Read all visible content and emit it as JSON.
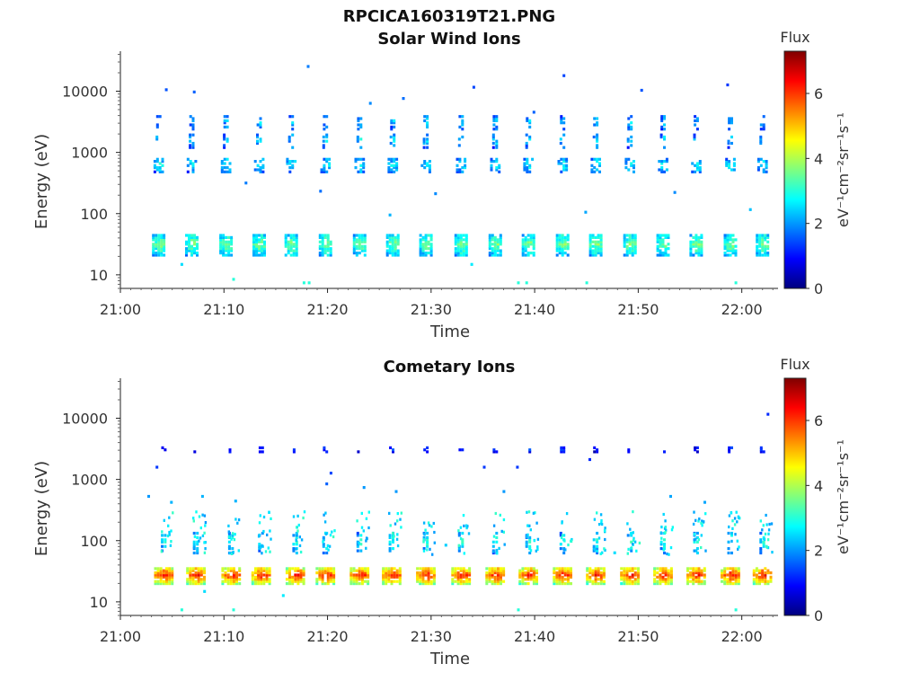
{
  "figure": {
    "title": "RPCICA160319T21.PNG"
  },
  "colorbar": {
    "label": "Flux",
    "unit_label": "eV⁻¹cm⁻²sr⁻¹s⁻¹",
    "range": [
      0,
      7.3
    ],
    "ticks": [
      0,
      2,
      4,
      6
    ],
    "colormap": [
      "#00007f",
      "#0000ff",
      "#007fff",
      "#00ffff",
      "#7fff7f",
      "#ffff00",
      "#ff7f00",
      "#ff0000",
      "#7f0000"
    ]
  },
  "chart_data": [
    {
      "type": "heatmap",
      "title": "Solar Wind Ions",
      "xlabel": "Time",
      "ylabel": "Energy (eV)",
      "x_ticks": [
        "21:00",
        "21:10",
        "21:20",
        "21:30",
        "21:40",
        "21:50",
        "22:00"
      ],
      "x_range_min": [
        0,
        63.5
      ],
      "y_scale": "log",
      "y_ticks": [
        10,
        100,
        1000,
        10000
      ],
      "y_range": [
        6,
        45000
      ],
      "grid": false,
      "bursts_min": [
        3.7,
        6.9,
        10.2,
        13.4,
        16.5,
        19.8,
        23.1,
        26.3,
        29.5,
        32.9,
        36.2,
        39.4,
        42.7,
        45.9,
        49.2,
        52.4,
        55.6,
        58.9,
        62.0
      ],
      "bands": [
        {
          "e_center": 30,
          "e_spread": 0.18,
          "flux": 3.4,
          "width_min": 1.3
        },
        {
          "e_center": 600,
          "e_spread": 0.12,
          "flux": 2.6,
          "width_min": 1.0
        },
        {
          "e_center": 1500,
          "e_spread": 0.12,
          "flux": 2.4,
          "width_min": 0.6
        },
        {
          "e_center": 3000,
          "e_spread": 0.12,
          "flux": 2.2,
          "width_min": 0.5
        }
      ],
      "points": [
        {
          "t": 18.0,
          "e": 24000,
          "f": 1.8
        },
        {
          "t": 4.3,
          "e": 10000,
          "f": 1.5
        },
        {
          "t": 7.0,
          "e": 9200,
          "f": 1.6
        },
        {
          "t": 34.0,
          "e": 11000,
          "f": 1.4
        },
        {
          "t": 42.7,
          "e": 17000,
          "f": 1.4
        },
        {
          "t": 58.5,
          "e": 12000,
          "f": 1.3
        },
        {
          "t": 27.2,
          "e": 7200,
          "f": 1.7
        },
        {
          "t": 50.2,
          "e": 9800,
          "f": 1.5
        },
        {
          "t": 24.0,
          "e": 6000,
          "f": 1.9
        },
        {
          "t": 39.8,
          "e": 4300,
          "f": 1.6
        },
        {
          "t": 12.0,
          "e": 300,
          "f": 1.8
        },
        {
          "t": 19.2,
          "e": 220,
          "f": 1.7
        },
        {
          "t": 25.9,
          "e": 90,
          "f": 2.2
        },
        {
          "t": 30.3,
          "e": 200,
          "f": 1.9
        },
        {
          "t": 44.8,
          "e": 100,
          "f": 2.1
        },
        {
          "t": 53.4,
          "e": 210,
          "f": 1.9
        },
        {
          "t": 60.7,
          "e": 110,
          "f": 2.3
        },
        {
          "t": 5.8,
          "e": 14,
          "f": 2.5
        },
        {
          "t": 10.8,
          "e": 8,
          "f": 3.0
        },
        {
          "t": 17.6,
          "e": 7,
          "f": 3.0
        },
        {
          "t": 18.1,
          "e": 7,
          "f": 3.0
        },
        {
          "t": 38.3,
          "e": 7,
          "f": 3.0
        },
        {
          "t": 39.1,
          "e": 7,
          "f": 3.0
        },
        {
          "t": 44.9,
          "e": 7,
          "f": 3.0
        },
        {
          "t": 59.3,
          "e": 7,
          "f": 3.0
        },
        {
          "t": 33.8,
          "e": 14,
          "f": 2.6
        }
      ]
    },
    {
      "type": "heatmap",
      "title": "Cometary Ions",
      "xlabel": "Time",
      "ylabel": "Energy (eV)",
      "x_ticks": [
        "21:00",
        "21:10",
        "21:20",
        "21:30",
        "21:40",
        "21:50",
        "22:00"
      ],
      "x_range_min": [
        0,
        63.5
      ],
      "y_scale": "log",
      "y_ticks": [
        10,
        100,
        1000,
        10000
      ],
      "y_range": [
        6,
        45000
      ],
      "grid": false,
      "bursts_min": [
        4.2,
        7.3,
        10.7,
        13.6,
        16.9,
        19.8,
        23.1,
        26.2,
        29.5,
        32.9,
        36.2,
        39.4,
        42.7,
        45.9,
        49.2,
        52.4,
        55.6,
        58.9,
        62.0
      ],
      "bands": [
        {
          "e_center": 26,
          "e_spread": 0.14,
          "flux": 5.8,
          "width_min": 1.9
        },
        {
          "e_center": 90,
          "e_spread": 0.18,
          "flux": 2.7,
          "width_min": 0.6
        },
        {
          "e_center": 3000,
          "e_spread": 0.05,
          "flux": 1.2,
          "width_min": 0.5
        }
      ],
      "points": [
        {
          "t": 62.4,
          "e": 11000,
          "f": 1.2
        },
        {
          "t": 20.2,
          "e": 1200,
          "f": 1.4
        },
        {
          "t": 19.8,
          "e": 800,
          "f": 1.6
        },
        {
          "t": 23.4,
          "e": 700,
          "f": 2.0
        },
        {
          "t": 26.5,
          "e": 600,
          "f": 2.0
        },
        {
          "t": 7.8,
          "e": 500,
          "f": 2.2
        },
        {
          "t": 4.8,
          "e": 400,
          "f": 2.2
        },
        {
          "t": 11.0,
          "e": 420,
          "f": 2.2
        },
        {
          "t": 53.0,
          "e": 500,
          "f": 2.1
        },
        {
          "t": 56.3,
          "e": 400,
          "f": 2.1
        },
        {
          "t": 35.0,
          "e": 1500,
          "f": 1.3
        },
        {
          "t": 38.2,
          "e": 1500,
          "f": 1.3
        },
        {
          "t": 45.2,
          "e": 2000,
          "f": 1.2
        },
        {
          "t": 2.6,
          "e": 500,
          "f": 2.0
        },
        {
          "t": 3.4,
          "e": 1500,
          "f": 1.3
        },
        {
          "t": 5.8,
          "e": 7,
          "f": 3.0
        },
        {
          "t": 8.0,
          "e": 14,
          "f": 2.5
        },
        {
          "t": 10.8,
          "e": 7,
          "f": 3.0
        },
        {
          "t": 15.6,
          "e": 12,
          "f": 2.6
        },
        {
          "t": 38.3,
          "e": 7,
          "f": 3.0
        },
        {
          "t": 59.3,
          "e": 7,
          "f": 3.0
        },
        {
          "t": 36.9,
          "e": 600,
          "f": 2.0
        },
        {
          "t": 31.3,
          "e": 80,
          "f": 2.4
        },
        {
          "t": 47.6,
          "e": 60,
          "f": 2.5
        }
      ]
    }
  ]
}
